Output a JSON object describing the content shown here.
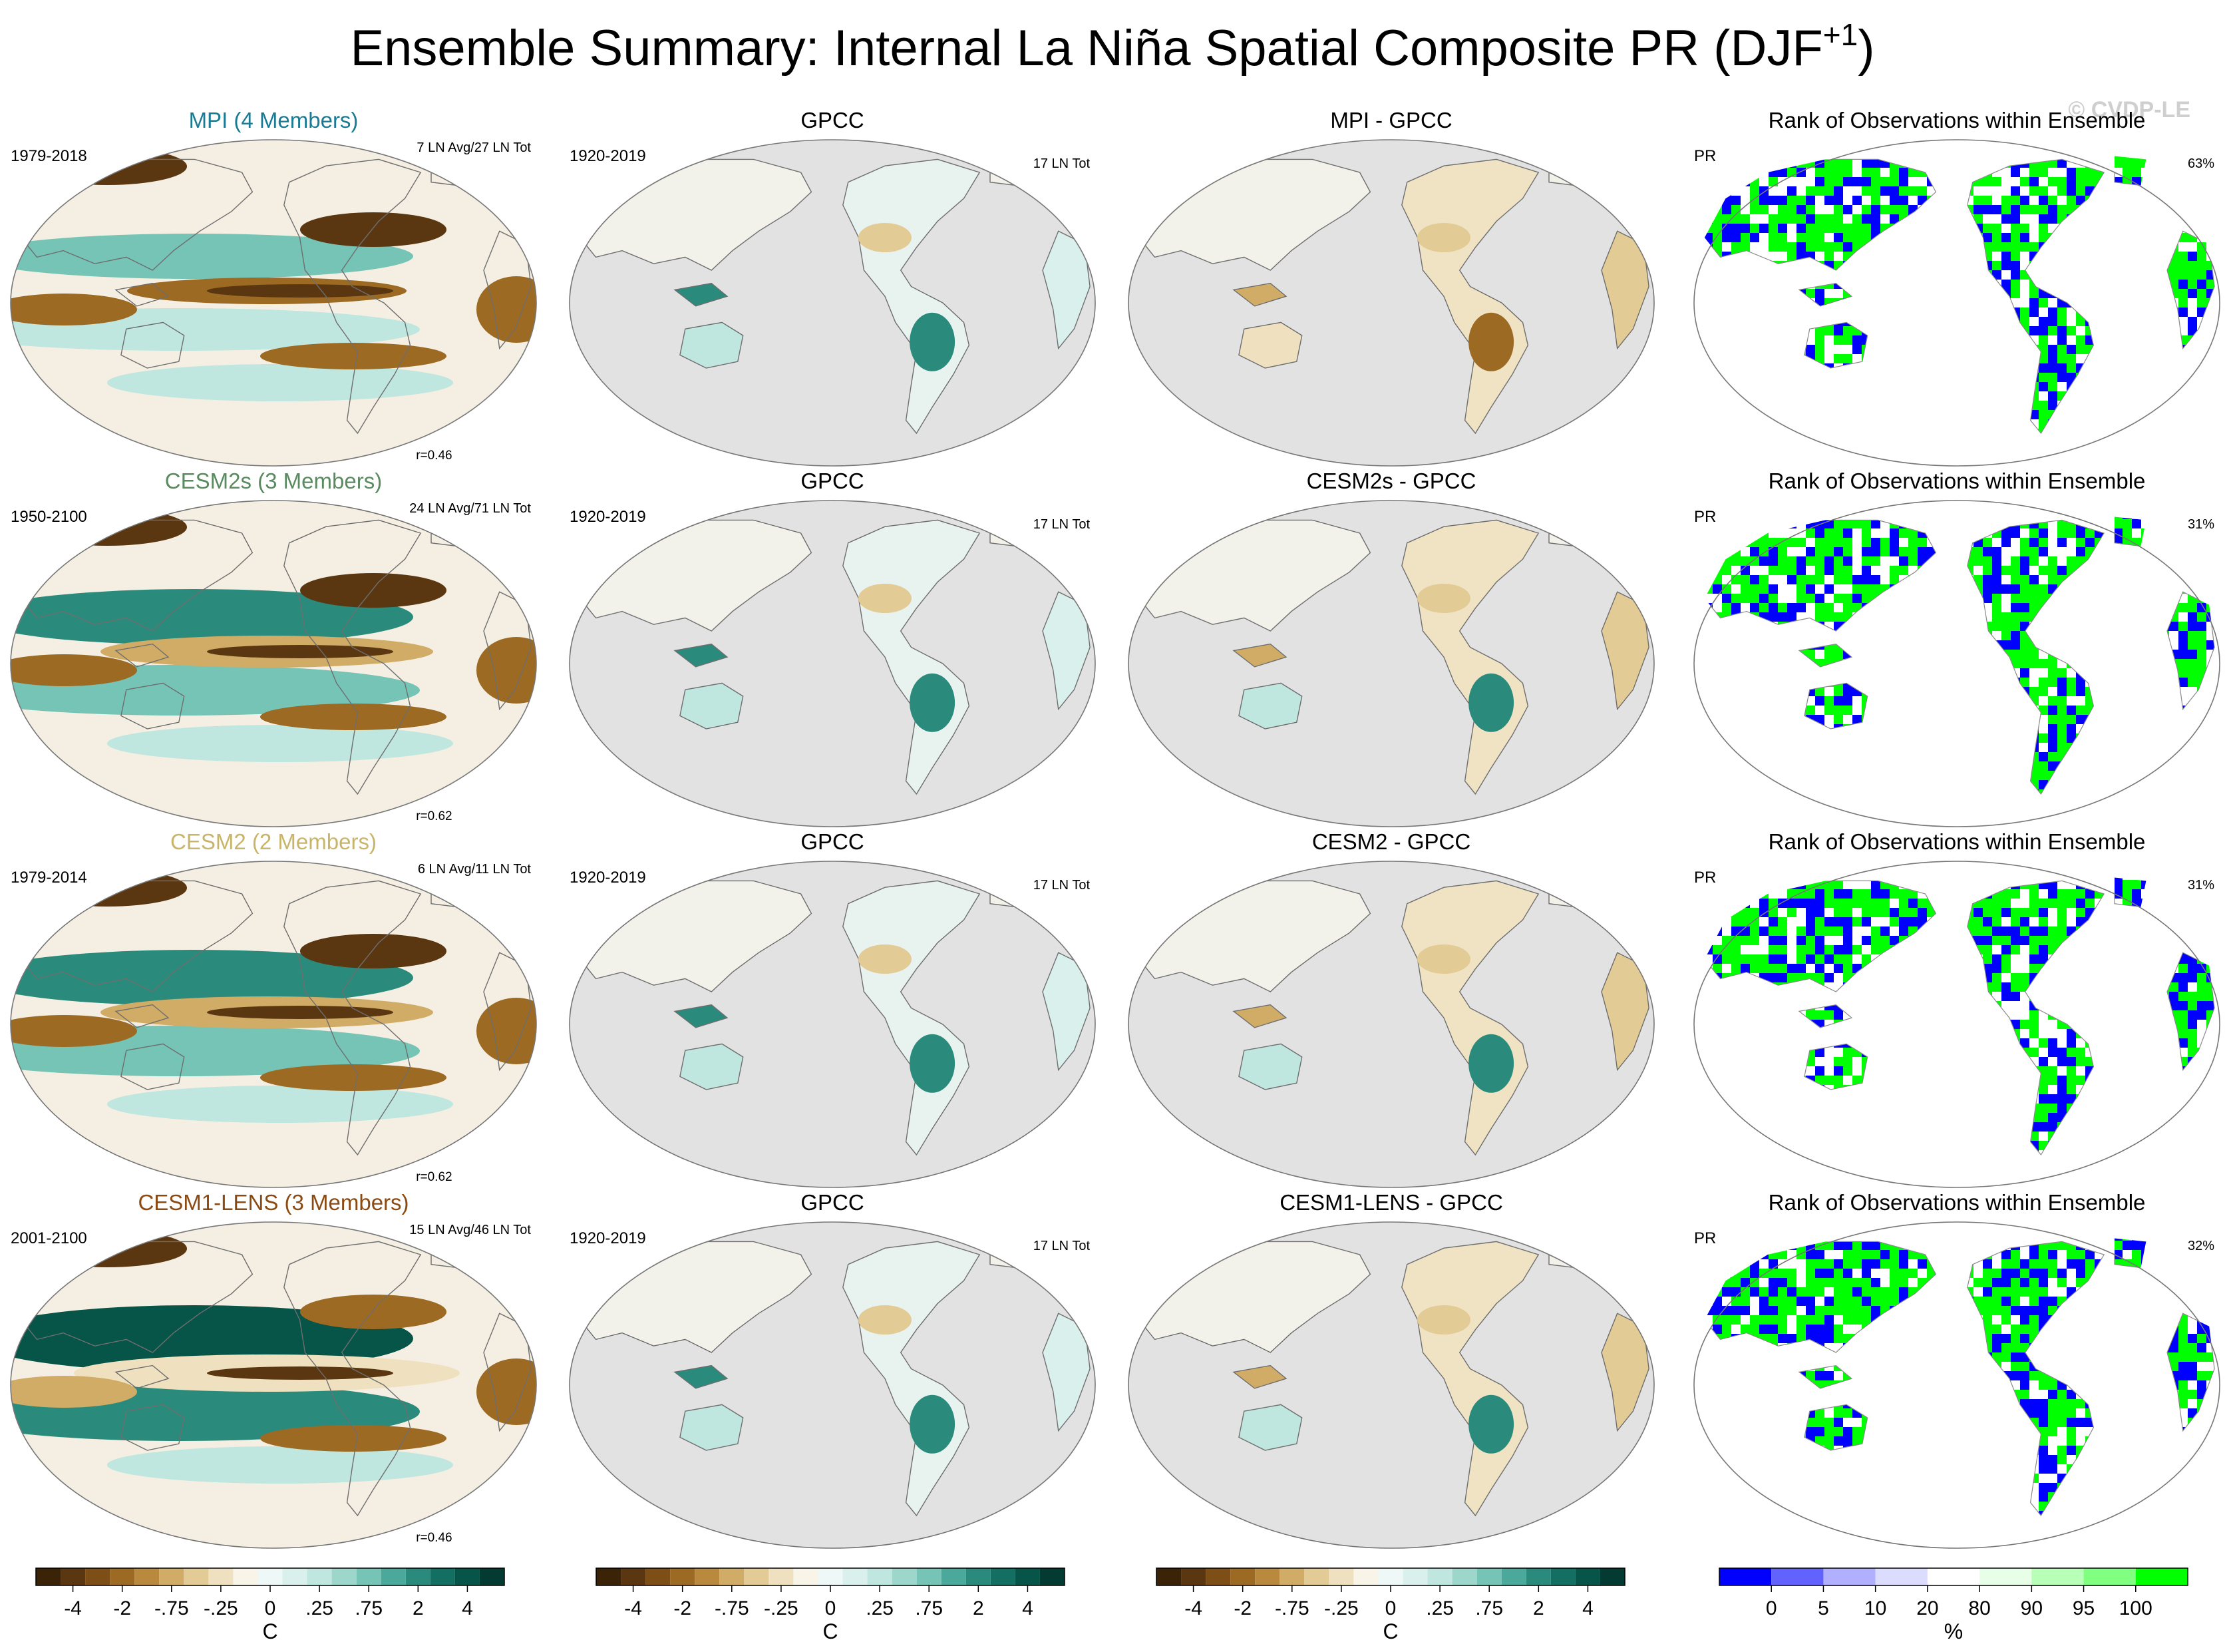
{
  "title_main": "Ensemble Summary: Internal La Niña Spatial Composite PR (DJF",
  "title_sup": "+1",
  "title_close": ")",
  "watermark": "© CVDP-LE",
  "colors": {
    "ocean_gray": "#e2e2e2",
    "coast": "#6e6e6e",
    "rank_low": "#0000ff",
    "rank_high": "#00ff00",
    "mpi_title": "#1b7a94",
    "cesm2s_title": "#5a8a60",
    "cesm2_title": "#c9b56a",
    "cesm1_title": "#8b4a12"
  },
  "chart_data": [
    {
      "type": "heatmap",
      "panel": "model",
      "title": "MPI (4 Members)",
      "title_color": "#1b7a94",
      "left_label": "1979-2018",
      "right_label": "7 LN Avg/27 LN Tot",
      "corr": "r=0.46",
      "variable": "PR"
    },
    {
      "type": "heatmap",
      "panel": "obs",
      "title": "GPCC",
      "left_label": "1920-2019",
      "right_label": "17 LN Tot",
      "variable": "PR"
    },
    {
      "type": "heatmap",
      "panel": "diff",
      "title": "MPI - GPCC",
      "variable": "PR"
    },
    {
      "type": "heatmap",
      "panel": "rank",
      "title": "Rank of Observations within Ensemble",
      "left_label": "PR",
      "right_label": "63%",
      "variable": "PR"
    },
    {
      "type": "heatmap",
      "panel": "model",
      "title": "CESM2s (3 Members)",
      "title_color": "#5a8a60",
      "left_label": "1950-2100",
      "right_label": "24 LN Avg/71 LN Tot",
      "corr": "r=0.62",
      "variable": "PR"
    },
    {
      "type": "heatmap",
      "panel": "obs",
      "title": "GPCC",
      "left_label": "1920-2019",
      "right_label": "17 LN Tot",
      "variable": "PR"
    },
    {
      "type": "heatmap",
      "panel": "diff",
      "title": "CESM2s - GPCC",
      "variable": "PR"
    },
    {
      "type": "heatmap",
      "panel": "rank",
      "title": "Rank of Observations within Ensemble",
      "left_label": "PR",
      "right_label": "31%",
      "variable": "PR"
    },
    {
      "type": "heatmap",
      "panel": "model",
      "title": "CESM2 (2 Members)",
      "title_color": "#c9b56a",
      "left_label": "1979-2014",
      "right_label": "6 LN Avg/11 LN Tot",
      "corr": "r=0.62",
      "variable": "PR"
    },
    {
      "type": "heatmap",
      "panel": "obs",
      "title": "GPCC",
      "left_label": "1920-2019",
      "right_label": "17 LN Tot",
      "variable": "PR"
    },
    {
      "type": "heatmap",
      "panel": "diff",
      "title": "CESM2 - GPCC",
      "variable": "PR"
    },
    {
      "type": "heatmap",
      "panel": "rank",
      "title": "Rank of Observations within Ensemble",
      "left_label": "PR",
      "right_label": "31%",
      "variable": "PR"
    },
    {
      "type": "heatmap",
      "panel": "model",
      "title": "CESM1-LENS (3 Members)",
      "title_color": "#8b4a12",
      "left_label": "2001-2100",
      "right_label": "15 LN Avg/46 LN Tot",
      "corr": "r=0.46",
      "variable": "PR"
    },
    {
      "type": "heatmap",
      "panel": "obs",
      "title": "GPCC",
      "left_label": "1920-2019",
      "right_label": "17 LN Tot",
      "variable": "PR"
    },
    {
      "type": "heatmap",
      "panel": "diff",
      "title": "CESM1-LENS - GPCC",
      "variable": "PR"
    },
    {
      "type": "heatmap",
      "panel": "rank",
      "title": "Rank of Observations within Ensemble",
      "left_label": "PR",
      "right_label": "32%",
      "variable": "PR"
    }
  ],
  "colorbars": {
    "diverging": {
      "colors": [
        "#3b2308",
        "#5a3710",
        "#7d4f16",
        "#9c6a22",
        "#b98a3e",
        "#d1ac66",
        "#e3cb95",
        "#efe1bf",
        "#f8f4e8",
        "#eef8f6",
        "#d9f0ec",
        "#bfe6df",
        "#9dd7cc",
        "#75c4b6",
        "#4aa99a",
        "#2a8b7d",
        "#126f62",
        "#075448",
        "#033b32"
      ],
      "tick_labels": [
        "-4",
        "-2",
        "-.75",
        "-.25",
        "0",
        ".25",
        ".75",
        "2",
        "4"
      ],
      "unit": "C"
    },
    "rank": {
      "colors": [
        "#0000ff",
        "#6262ff",
        "#b0b0ff",
        "#dcdcff",
        "#ffffff",
        "#e6ffe6",
        "#b8ffb8",
        "#80ff80",
        "#00ff00"
      ],
      "tick_labels": [
        "0",
        "5",
        "10",
        "20",
        "80",
        "90",
        "95",
        "100"
      ],
      "unit": "%"
    }
  }
}
